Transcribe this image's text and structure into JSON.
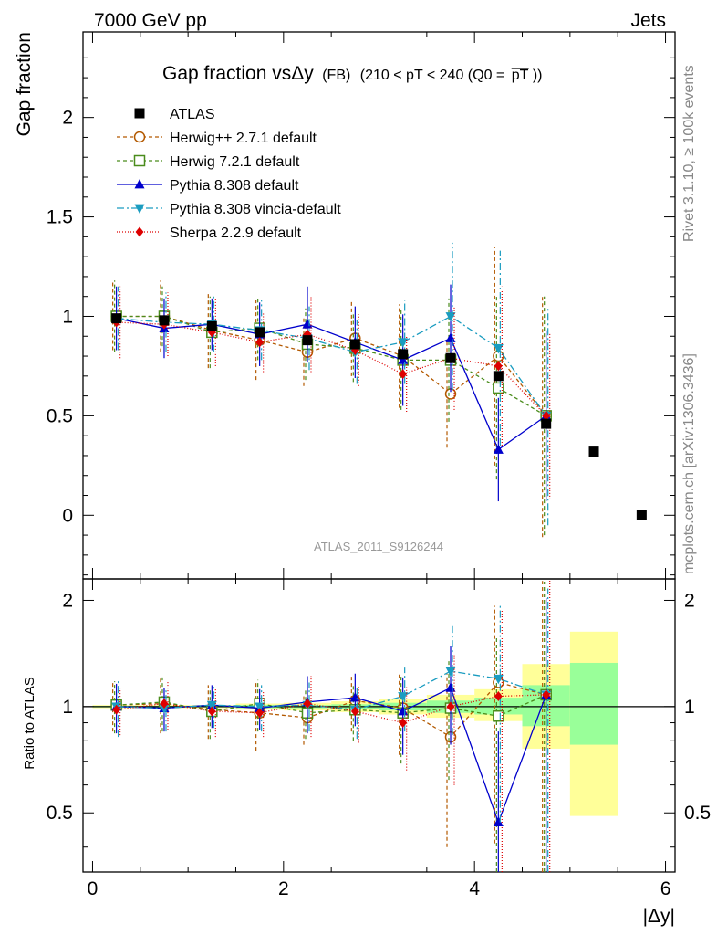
{
  "header": {
    "left": "7000 GeV pp",
    "right": "Jets"
  },
  "side_labels": {
    "rivet": "Rivet 3.1.10, ≥ 100k events",
    "mcplots": "mcplots.cern.ch [arXiv:1306.3436]"
  },
  "watermark": "ATLAS_2011_S9126244",
  "chart_data": {
    "type": "scatter",
    "title": {
      "main": "Gap fraction vsΔy",
      "small": "(FB)",
      "range": "(210 < pT < 240 (Q0 =",
      "overline": "pT",
      "close": "))"
    },
    "ylabel": "Gap fraction",
    "ratio_ylabel": "Ratio to ATLAS",
    "xlabel": "|Δy|",
    "xlim": [
      -0.1,
      6.1
    ],
    "ylim": [
      -0.32,
      2.43
    ],
    "ratio_ylim": [
      0.34,
      2.3
    ],
    "x_ticks": [
      "0",
      "2",
      "4",
      "6"
    ],
    "y_ticks": [
      "0",
      "0.5",
      "1",
      "1.5",
      "2"
    ],
    "ratio_ticks": [
      "0.5",
      "1",
      "2"
    ],
    "legend_position": "top-left",
    "data": {
      "name": "ATLAS",
      "color": "#000000",
      "x": [
        0.25,
        0.75,
        1.25,
        1.75,
        2.25,
        2.75,
        3.25,
        3.75,
        4.25,
        4.75,
        5.25,
        5.75
      ],
      "y": [
        0.99,
        0.98,
        0.95,
        0.92,
        0.88,
        0.86,
        0.81,
        0.79,
        0.7,
        0.46,
        0.32,
        0.0
      ]
    },
    "series": [
      {
        "name": "Herwig++ 2.7.1 default",
        "color": "#b35900",
        "dash": "4,3",
        "marker": "circle-open",
        "x": [
          0.25,
          0.75,
          1.25,
          1.75,
          2.25,
          2.75,
          3.25,
          3.75,
          4.25,
          4.75
        ],
        "y": [
          1.0,
          1.0,
          0.93,
          0.88,
          0.82,
          0.89,
          0.8,
          0.61,
          0.8,
          0.5
        ],
        "err": [
          0.17,
          0.18,
          0.19,
          0.2,
          0.17,
          0.19,
          0.26,
          0.27,
          0.55,
          0.61
        ],
        "ratio": [
          1.01,
          1.02,
          0.98,
          0.96,
          0.93,
          1.04,
          0.99,
          0.82,
          1.17,
          1.08
        ],
        "ratio_err": [
          0.16,
          0.18,
          0.17,
          0.21,
          0.15,
          0.19,
          0.26,
          0.42,
          0.76,
          1.19
        ]
      },
      {
        "name": "Herwig 7.2.1 default",
        "color": "#4a8c1c",
        "dash": "4,3",
        "marker": "square-open",
        "x": [
          0.25,
          0.75,
          1.25,
          1.75,
          2.25,
          2.75,
          3.25,
          3.75,
          4.25,
          4.75
        ],
        "y": [
          1.0,
          1.0,
          0.92,
          0.94,
          0.86,
          0.84,
          0.78,
          0.78,
          0.64,
          0.5
        ],
        "err": [
          0.18,
          0.15,
          0.18,
          0.16,
          0.18,
          0.17,
          0.25,
          0.31,
          0.46,
          0.6
        ],
        "ratio": [
          1.01,
          1.03,
          0.97,
          1.02,
          0.96,
          0.98,
          0.96,
          0.99,
          0.94,
          1.08
        ],
        "ratio_err": [
          0.17,
          0.18,
          0.16,
          0.17,
          0.15,
          0.18,
          0.27,
          0.37,
          0.65,
          1.18
        ]
      },
      {
        "name": "Pythia 8.308 default",
        "color": "#0000cc",
        "dash": "",
        "marker": "triangle-up",
        "x": [
          0.25,
          0.75,
          1.25,
          1.75,
          2.25,
          2.75,
          3.25,
          3.75,
          4.25,
          4.75
        ],
        "y": [
          0.99,
          0.94,
          0.96,
          0.91,
          0.96,
          0.87,
          0.78,
          0.89,
          0.33,
          0.5
        ],
        "err": [
          0.16,
          0.15,
          0.13,
          0.16,
          0.19,
          0.18,
          0.23,
          0.27,
          0.26,
          0.43
        ],
        "ratio": [
          1.0,
          0.99,
          1.01,
          0.99,
          1.03,
          1.06,
          0.97,
          1.13,
          0.47,
          1.08
        ],
        "ratio_err": [
          0.16,
          0.14,
          0.14,
          0.13,
          0.19,
          0.18,
          0.24,
          0.35,
          0.38,
          0.95
        ]
      },
      {
        "name": "Pythia 8.308 vincia-default",
        "color": "#1a9cc0",
        "dash": "8,3,2,3",
        "marker": "triangle-down",
        "x": [
          0.25,
          0.75,
          1.25,
          1.75,
          2.25,
          2.75,
          3.25,
          3.75,
          4.25,
          4.75
        ],
        "y": [
          0.99,
          0.97,
          0.96,
          0.93,
          0.89,
          0.82,
          0.87,
          1.0,
          0.84,
          0.5
        ],
        "err": [
          0.16,
          0.15,
          0.14,
          0.15,
          0.16,
          0.16,
          0.21,
          0.37,
          0.49,
          0.55
        ],
        "ratio": [
          1.0,
          0.99,
          1.01,
          1.0,
          1.01,
          0.98,
          1.07,
          1.26,
          1.2,
          1.08
        ],
        "ratio_err": [
          0.18,
          0.14,
          0.14,
          0.15,
          0.16,
          0.17,
          0.22,
          0.43,
          0.73,
          1.08
        ]
      },
      {
        "name": "Sherpa 2.2.9 default",
        "color": "#dd0000",
        "dash": "1,2",
        "marker": "diamond",
        "x": [
          0.25,
          0.75,
          1.25,
          1.75,
          2.25,
          2.75,
          3.25,
          3.75,
          4.25,
          4.75
        ],
        "y": [
          0.97,
          0.96,
          0.92,
          0.87,
          0.91,
          0.83,
          0.71,
          0.79,
          0.75,
          0.5
        ],
        "err": [
          0.18,
          0.16,
          0.17,
          0.15,
          0.19,
          0.18,
          0.19,
          0.26,
          0.4,
          0.42
        ],
        "ratio": [
          0.98,
          1.02,
          0.97,
          0.96,
          1.02,
          0.97,
          0.9,
          1.0,
          1.07,
          1.08
        ],
        "ratio_err": [
          0.15,
          0.16,
          0.15,
          0.14,
          0.2,
          0.18,
          0.24,
          0.4,
          0.82,
          1.2
        ]
      }
    ],
    "uncertainty_bands": {
      "x_edges": [
        0,
        0.5,
        1.0,
        1.5,
        2.0,
        2.5,
        3.0,
        3.5,
        4.0,
        4.5,
        5.0,
        5.5
      ],
      "stat_lo": [
        0.995,
        0.995,
        0.995,
        0.99,
        0.99,
        0.985,
        0.975,
        0.96,
        0.95,
        0.88,
        0.78
      ],
      "stat_hi": [
        1.005,
        1.005,
        1.005,
        1.01,
        1.01,
        1.015,
        1.025,
        1.04,
        1.06,
        1.15,
        1.33
      ],
      "tot_lo": [
        0.99,
        0.99,
        0.99,
        0.98,
        0.975,
        0.965,
        0.95,
        0.93,
        0.91,
        0.76,
        0.49
      ],
      "tot_hi": [
        1.01,
        1.01,
        1.01,
        1.02,
        1.025,
        1.035,
        1.05,
        1.08,
        1.12,
        1.32,
        1.63
      ]
    }
  }
}
